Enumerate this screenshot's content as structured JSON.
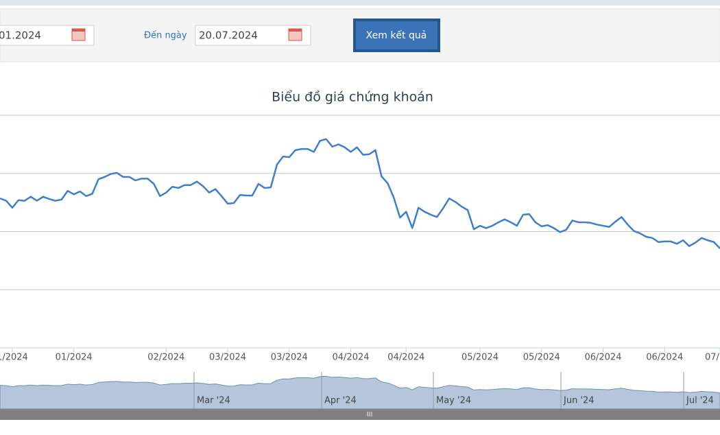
{
  "form": {
    "from_date": "01.2024",
    "to_label": "Đến ngày",
    "to_date": "20.07.2024",
    "submit": "Xem kết quả"
  },
  "chart_data": {
    "type": "line",
    "title": "Biểu đồ giá chứng khoán",
    "color": "#3d7fcc",
    "values": [
      257,
      253,
      241,
      254,
      253,
      260,
      253,
      260,
      256,
      253,
      255,
      270,
      264,
      269,
      261,
      265,
      290,
      294,
      299,
      301,
      294,
      294,
      288,
      291,
      291,
      282,
      261,
      267,
      277,
      275,
      280,
      280,
      286,
      278,
      267,
      273,
      261,
      248,
      249,
      263,
      262,
      262,
      282,
      275,
      276,
      315,
      329,
      328,
      340,
      342,
      342,
      337,
      356,
      359,
      346,
      350,
      345,
      337,
      345,
      332,
      333,
      340,
      295,
      283,
      258,
      224,
      234,
      206,
      241,
      234,
      229,
      225,
      240,
      257,
      251,
      243,
      237,
      204,
      210,
      206,
      210,
      216,
      221,
      216,
      210,
      229,
      230,
      216,
      209,
      211,
      206,
      199,
      203,
      219,
      216,
      216,
      215,
      212,
      210,
      208,
      217,
      225,
      212,
      201,
      197,
      191,
      189,
      182,
      183,
      183,
      179,
      185,
      175,
      181,
      189,
      185,
      182,
      171
    ],
    "ylim": [
      0,
      400
    ],
    "grid": true,
    "grid_values": [
      100,
      200,
      300,
      400
    ],
    "xticks": [
      {
        "value": 2,
        "label": "1/2024"
      },
      {
        "value": 12,
        "label": "01/2024"
      },
      {
        "value": 27,
        "label": "02/2024"
      },
      {
        "value": 37,
        "label": "03/2024"
      },
      {
        "value": 47,
        "label": "03/2024"
      },
      {
        "value": 57,
        "label": "04/2024"
      },
      {
        "value": 66,
        "label": "04/2024"
      },
      {
        "value": 78,
        "label": "05/2024"
      },
      {
        "value": 88,
        "label": "05/2024"
      },
      {
        "value": 98,
        "label": "06/2024"
      },
      {
        "value": 108,
        "label": "06/2024"
      },
      {
        "value": 117,
        "label": "07/"
      }
    ],
    "navigator_labels": [
      "Mar '24",
      "Apr '24",
      "May '24",
      "Jun '24",
      "Jul '24"
    ],
    "scrollbar": "III"
  }
}
